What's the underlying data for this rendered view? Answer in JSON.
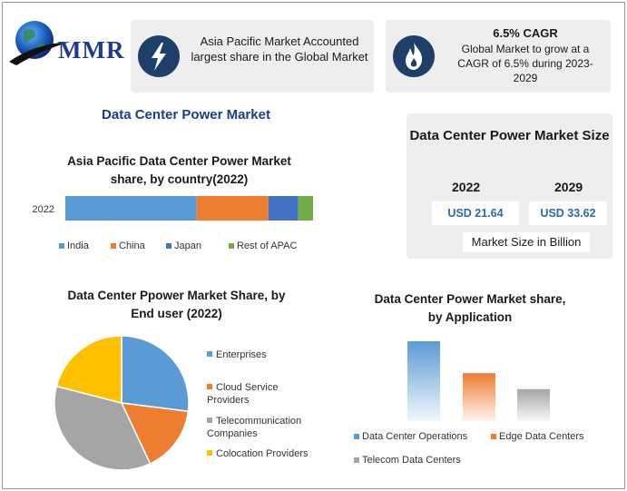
{
  "logo": {
    "text": "MMR"
  },
  "info_cards": [
    {
      "icon": "lightning-icon",
      "text": "Asia Pacific Market Accounted largest share in the Global Market"
    },
    {
      "icon": "flame-icon",
      "heading": "6.5% CAGR",
      "text": "Global Market to grow at a CAGR of 6.5% during 2023-2029"
    }
  ],
  "main_title": "Data Center Power Market",
  "market_size": {
    "title": "Data Center Power Market Size",
    "year1": "2022",
    "year2": "2029",
    "value1": "USD 21.64",
    "value2": "USD 33.62",
    "unit_label": "Market Size in Billion"
  },
  "chart_data": [
    {
      "type": "bar",
      "orientation": "horizontal-stacked",
      "title": "Asia Pacific Data Center Power Market share, by country(2022)",
      "categories": [
        "2022"
      ],
      "series": [
        {
          "name": "India",
          "values": [
            53
          ],
          "color": "#5b9bd5"
        },
        {
          "name": "China",
          "values": [
            29
          ],
          "color": "#ed7d31"
        },
        {
          "name": "Japan",
          "values": [
            12
          ],
          "color": "#4472c4"
        },
        {
          "name": "Rest of APAC",
          "values": [
            6
          ],
          "color": "#70ad47"
        }
      ],
      "legend": "bottom"
    },
    {
      "type": "pie",
      "title": "Data Center Ppower Market Share, by End user (2022)",
      "labels": [
        "Enterprises",
        "Cloud Service Providers",
        "Telecommunication Companies",
        "Colocation Providers"
      ],
      "values": [
        27,
        16,
        36,
        21
      ],
      "colors": [
        "#5b9bd5",
        "#ed7d31",
        "#a5a5a5",
        "#ffc000"
      ],
      "legend": "right"
    },
    {
      "type": "bar",
      "title": "Data Center Power Market share, by Application",
      "categories": [
        "Data Center Operations",
        "Edge Data Centers",
        "Telecom Data Centers"
      ],
      "values": [
        50,
        30,
        20
      ],
      "colors": [
        "#5b9bd5",
        "#ed7d31",
        "#a5a5a5"
      ],
      "legend": "bottom"
    }
  ]
}
